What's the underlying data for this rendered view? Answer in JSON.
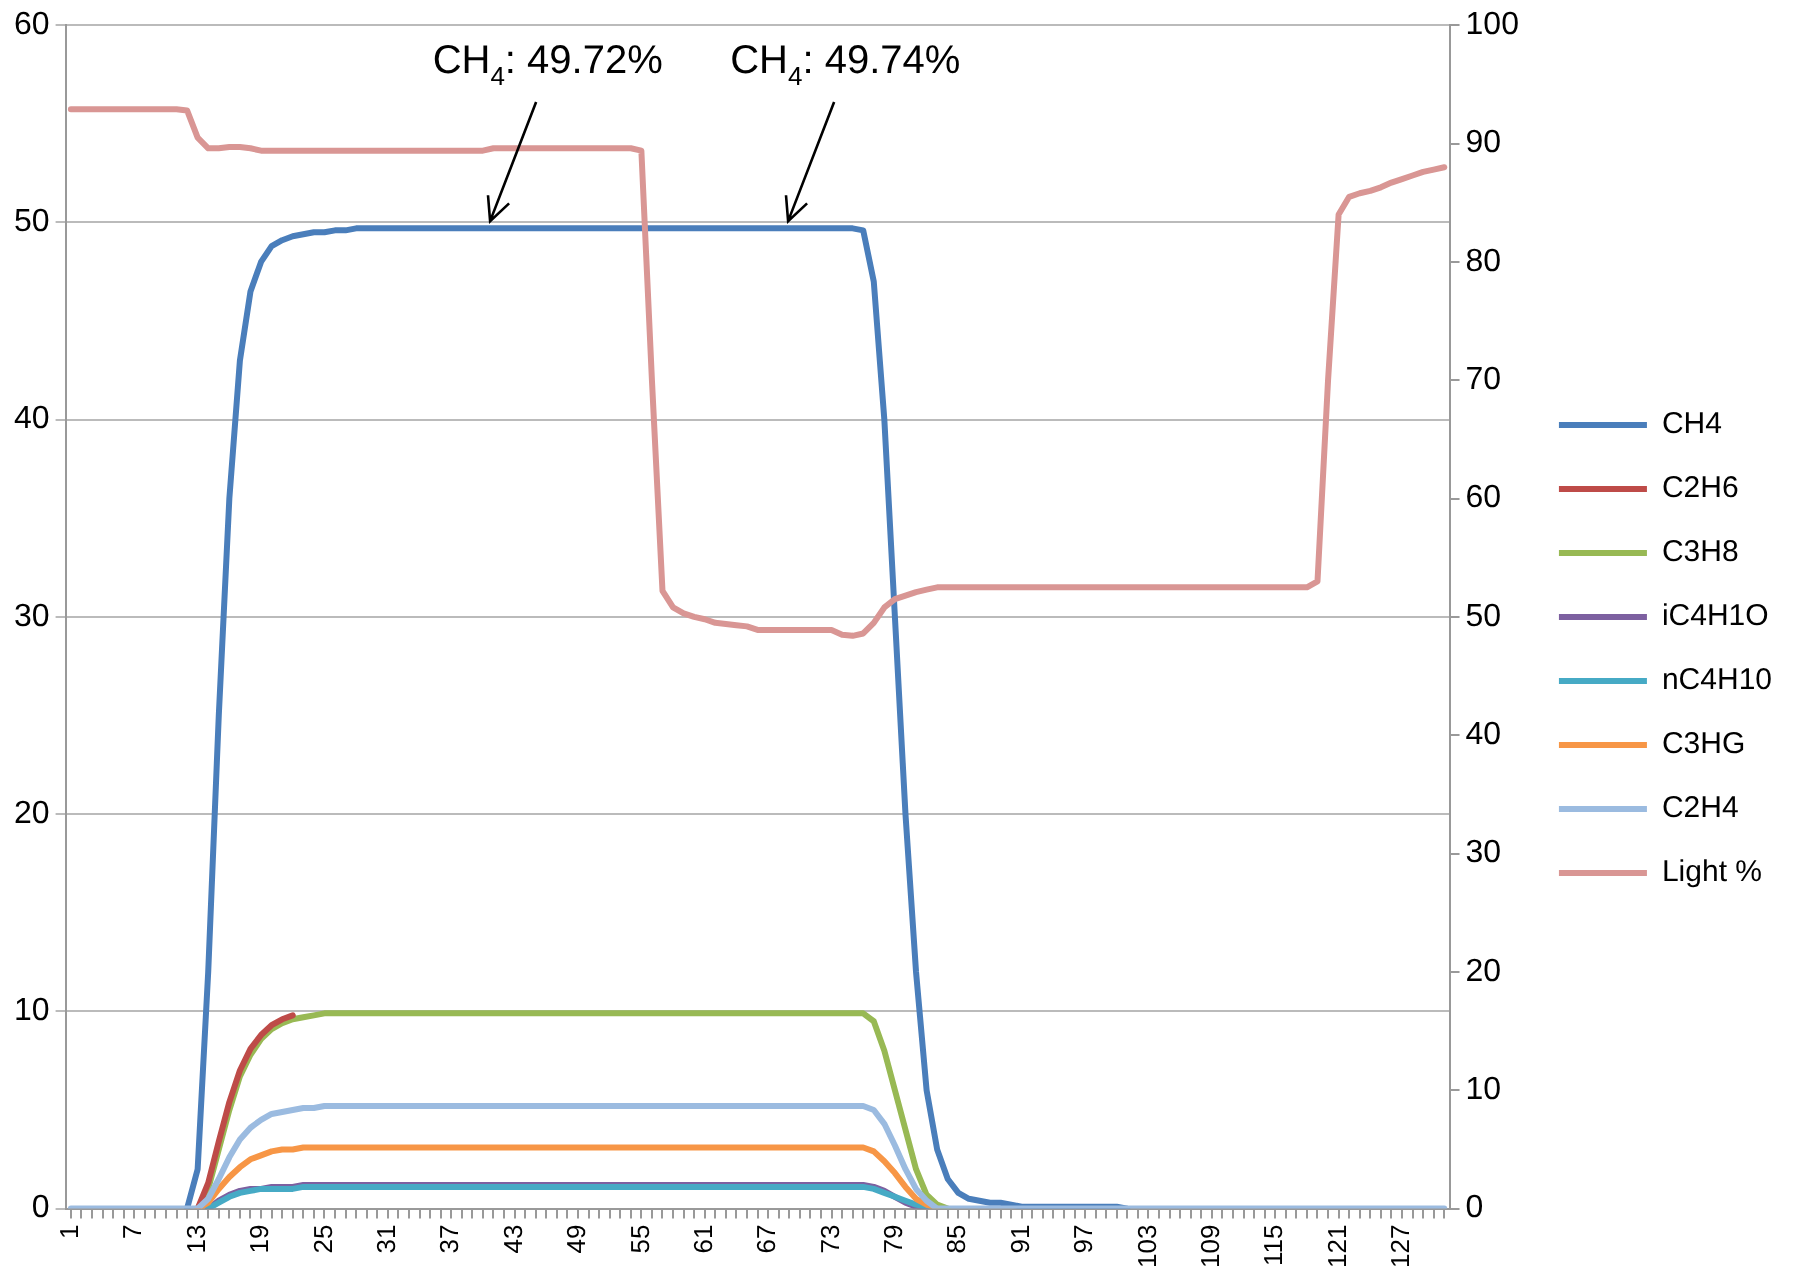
{
  "chart_data": {
    "type": "line",
    "categories": [
      "1",
      null,
      null,
      null,
      null,
      null,
      "7",
      null,
      null,
      null,
      null,
      null,
      "13",
      null,
      null,
      null,
      null,
      null,
      "19",
      null,
      null,
      null,
      null,
      null,
      "25",
      null,
      null,
      null,
      null,
      null,
      "31",
      null,
      null,
      null,
      null,
      null,
      "37",
      null,
      null,
      null,
      null,
      null,
      "43",
      null,
      null,
      null,
      null,
      null,
      "49",
      null,
      null,
      null,
      null,
      null,
      "55",
      null,
      null,
      null,
      null,
      null,
      "61",
      null,
      null,
      null,
      null,
      null,
      "67",
      null,
      null,
      null,
      null,
      null,
      "73",
      null,
      null,
      null,
      null,
      null,
      "79",
      null,
      null,
      null,
      null,
      null,
      "85",
      null,
      null,
      null,
      null,
      null,
      "91",
      null,
      null,
      null,
      null,
      null,
      "97",
      null,
      null,
      null,
      null,
      null,
      "103",
      null,
      null,
      null,
      null,
      null,
      "109",
      null,
      null,
      null,
      null,
      null,
      "115",
      null,
      null,
      null,
      null,
      null,
      "121",
      null,
      null,
      null,
      null,
      null,
      "127",
      null,
      null,
      null,
      null
    ],
    "series": [
      {
        "name": "CH4",
        "color": "#4a7ebb",
        "values": [
          null,
          null,
          null,
          null,
          null,
          null,
          null,
          null,
          null,
          null,
          null,
          0,
          2,
          12,
          25,
          36,
          43,
          46.5,
          48,
          48.8,
          49.1,
          49.3,
          49.4,
          49.5,
          49.5,
          49.6,
          49.6,
          49.7,
          49.7,
          49.7,
          49.7,
          49.7,
          49.7,
          49.7,
          49.7,
          49.7,
          49.7,
          49.7,
          49.7,
          49.7,
          49.7,
          49.7,
          49.7,
          49.7,
          49.7,
          49.7,
          49.7,
          49.7,
          49.7,
          49.7,
          49.7,
          49.7,
          49.7,
          49.7,
          49.7,
          49.7,
          49.7,
          49.7,
          49.7,
          49.7,
          49.7,
          49.7,
          49.7,
          49.7,
          49.7,
          49.7,
          49.7,
          49.7,
          49.7,
          49.7,
          49.7,
          49.7,
          49.7,
          49.7,
          49.7,
          49.6,
          47,
          40,
          30,
          20,
          12,
          6,
          3,
          1.5,
          0.8,
          0.5,
          0.4,
          0.3,
          0.3,
          0.2,
          0.1,
          0.1,
          0.1,
          0.1,
          0.1,
          0.1,
          0.1,
          0.1,
          0.1,
          0.1,
          0,
          null,
          null,
          null,
          null,
          null,
          null,
          null,
          null,
          null,
          null,
          null,
          null,
          null,
          null,
          null,
          null,
          null,
          null,
          null,
          null,
          null,
          null,
          null,
          null,
          null,
          null,
          null,
          null,
          null,
          null
        ]
      },
      {
        "name": "C2H6",
        "color": "#be4b48",
        "values": [
          null,
          null,
          null,
          null,
          null,
          null,
          null,
          null,
          null,
          null,
          null,
          null,
          0,
          1.3,
          3.4,
          5.4,
          7,
          8.1,
          8.8,
          9.3,
          9.6,
          9.8,
          null,
          null,
          null,
          null,
          null,
          null,
          null,
          null,
          null,
          null,
          null,
          null,
          null,
          null,
          null,
          null,
          null,
          null,
          null,
          null,
          null,
          null,
          null,
          null,
          null,
          null,
          null,
          null,
          null,
          null,
          null,
          null,
          null,
          null,
          null,
          null,
          null,
          null,
          null,
          null,
          null,
          null,
          null,
          null,
          null,
          null,
          null,
          null,
          null,
          null,
          null,
          null,
          null,
          null,
          null,
          null,
          null,
          null,
          null,
          null,
          null,
          null,
          null,
          null,
          null,
          null,
          null,
          null,
          null,
          null,
          null,
          null,
          null,
          null,
          null,
          null,
          null,
          null,
          null,
          null,
          null,
          null,
          null,
          null,
          null,
          null,
          null,
          null,
          null,
          null,
          null,
          null,
          null,
          null,
          null,
          null,
          null,
          null,
          null,
          null,
          null,
          null,
          null,
          null,
          null,
          null,
          null,
          null,
          null
        ]
      },
      {
        "name": "C3H8",
        "color": "#98b954",
        "values": [
          null,
          null,
          null,
          null,
          null,
          null,
          null,
          null,
          null,
          null,
          null,
          null,
          0,
          1,
          3,
          5,
          6.7,
          7.8,
          8.6,
          9.1,
          9.4,
          9.6,
          9.7,
          9.8,
          9.9,
          9.9,
          9.9,
          9.9,
          9.9,
          9.9,
          9.9,
          9.9,
          9.9,
          9.9,
          9.9,
          9.9,
          9.9,
          9.9,
          9.9,
          9.9,
          9.9,
          9.9,
          9.9,
          9.9,
          9.9,
          9.9,
          9.9,
          9.9,
          9.9,
          9.9,
          9.9,
          9.9,
          9.9,
          9.9,
          9.9,
          9.9,
          9.9,
          9.9,
          9.9,
          9.9,
          9.9,
          9.9,
          9.9,
          9.9,
          9.9,
          9.9,
          9.9,
          9.9,
          9.9,
          9.9,
          9.9,
          9.9,
          9.9,
          9.9,
          9.9,
          9.9,
          9.5,
          8,
          6,
          4,
          2,
          0.7,
          0.2,
          0,
          null,
          null,
          null,
          null,
          null,
          null,
          null,
          null,
          null,
          null,
          null,
          null,
          null,
          null,
          null,
          null,
          null,
          null,
          null,
          null,
          null,
          null,
          null,
          null,
          null,
          null,
          null,
          null,
          null,
          null,
          null,
          null,
          null,
          null,
          null,
          null,
          null,
          null,
          null,
          null,
          null,
          null,
          null,
          null,
          null,
          null,
          null
        ]
      },
      {
        "name": "iC4H1O",
        "color": "#7d60a0",
        "values": [
          null,
          null,
          null,
          null,
          null,
          null,
          null,
          null,
          null,
          null,
          null,
          null,
          null,
          0,
          0.4,
          0.7,
          0.9,
          1,
          1,
          1.1,
          1.1,
          1.1,
          1.2,
          1.2,
          1.2,
          1.2,
          1.2,
          1.2,
          1.2,
          1.2,
          1.2,
          1.2,
          1.2,
          1.2,
          1.2,
          1.2,
          1.2,
          1.2,
          1.2,
          1.2,
          1.2,
          1.2,
          1.2,
          1.2,
          1.2,
          1.2,
          1.2,
          1.2,
          1.2,
          1.2,
          1.2,
          1.2,
          1.2,
          1.2,
          1.2,
          1.2,
          1.2,
          1.2,
          1.2,
          1.2,
          1.2,
          1.2,
          1.2,
          1.2,
          1.2,
          1.2,
          1.2,
          1.2,
          1.2,
          1.2,
          1.2,
          1.2,
          1.2,
          1.2,
          1.2,
          1.2,
          1.1,
          0.9,
          0.6,
          0.3,
          0.1,
          0,
          null,
          null,
          null,
          null,
          null,
          null,
          null,
          null,
          null,
          null,
          null,
          null,
          null,
          null,
          null,
          null,
          null,
          null,
          null,
          null,
          null,
          null,
          null,
          null,
          null,
          null,
          null,
          null,
          null,
          null,
          null,
          null,
          null,
          null,
          null,
          null,
          null,
          null,
          null,
          null,
          null,
          null,
          null,
          null,
          null,
          null,
          null,
          null,
          null
        ]
      },
      {
        "name": "nC4H10",
        "color": "#46aac5",
        "values": [
          null,
          null,
          null,
          null,
          null,
          null,
          null,
          null,
          null,
          null,
          null,
          null,
          null,
          0,
          0.3,
          0.6,
          0.8,
          0.9,
          1,
          1,
          1,
          1,
          1.1,
          1.1,
          1.1,
          1.1,
          1.1,
          1.1,
          1.1,
          1.1,
          1.1,
          1.1,
          1.1,
          1.1,
          1.1,
          1.1,
          1.1,
          1.1,
          1.1,
          1.1,
          1.1,
          1.1,
          1.1,
          1.1,
          1.1,
          1.1,
          1.1,
          1.1,
          1.1,
          1.1,
          1.1,
          1.1,
          1.1,
          1.1,
          1.1,
          1.1,
          1.1,
          1.1,
          1.1,
          1.1,
          1.1,
          1.1,
          1.1,
          1.1,
          1.1,
          1.1,
          1.1,
          1.1,
          1.1,
          1.1,
          1.1,
          1.1,
          1.1,
          1.1,
          1.1,
          1.1,
          1,
          0.8,
          0.6,
          0.4,
          0.2,
          0.1,
          0,
          null,
          null,
          null,
          null,
          null,
          null,
          null,
          null,
          null,
          null,
          null,
          null,
          null,
          null,
          null,
          null,
          null,
          null,
          null,
          null,
          null,
          null,
          null,
          null,
          null,
          null,
          null,
          null,
          null,
          null,
          null,
          null,
          null,
          null,
          null,
          null,
          null,
          null,
          null,
          null,
          null,
          null,
          null,
          null,
          null,
          null,
          null,
          null
        ]
      },
      {
        "name": "C3HG",
        "color": "#f79646",
        "values": [
          null,
          null,
          null,
          null,
          null,
          null,
          null,
          null,
          null,
          null,
          null,
          null,
          0,
          0.3,
          1,
          1.6,
          2.1,
          2.5,
          2.7,
          2.9,
          3,
          3,
          3.1,
          3.1,
          3.1,
          3.1,
          3.1,
          3.1,
          3.1,
          3.1,
          3.1,
          3.1,
          3.1,
          3.1,
          3.1,
          3.1,
          3.1,
          3.1,
          3.1,
          3.1,
          3.1,
          3.1,
          3.1,
          3.1,
          3.1,
          3.1,
          3.1,
          3.1,
          3.1,
          3.1,
          3.1,
          3.1,
          3.1,
          3.1,
          3.1,
          3.1,
          3.1,
          3.1,
          3.1,
          3.1,
          3.1,
          3.1,
          3.1,
          3.1,
          3.1,
          3.1,
          3.1,
          3.1,
          3.1,
          3.1,
          3.1,
          3.1,
          3.1,
          3.1,
          3.1,
          3.1,
          2.9,
          2.4,
          1.8,
          1.1,
          0.5,
          0.2,
          0,
          null,
          null,
          null,
          null,
          null,
          null,
          null,
          null,
          null,
          null,
          null,
          null,
          null,
          null,
          null,
          null,
          null,
          null,
          null,
          null,
          null,
          null,
          null,
          null,
          null,
          null,
          null,
          null,
          null,
          null,
          null,
          null,
          null,
          null,
          null,
          null,
          null,
          null,
          null,
          null,
          null,
          null,
          null,
          null,
          null,
          null,
          null,
          null
        ]
      },
      {
        "name": "C2H4",
        "color": "#9bbbe0",
        "values": [
          0,
          0,
          0,
          0,
          0,
          0,
          0,
          0,
          0,
          0,
          0,
          0,
          0,
          0.5,
          1.5,
          2.6,
          3.5,
          4.1,
          4.5,
          4.8,
          4.9,
          5,
          5.1,
          5.1,
          5.2,
          5.2,
          5.2,
          5.2,
          5.2,
          5.2,
          5.2,
          5.2,
          5.2,
          5.2,
          5.2,
          5.2,
          5.2,
          5.2,
          5.2,
          5.2,
          5.2,
          5.2,
          5.2,
          5.2,
          5.2,
          5.2,
          5.2,
          5.2,
          5.2,
          5.2,
          5.2,
          5.2,
          5.2,
          5.2,
          5.2,
          5.2,
          5.2,
          5.2,
          5.2,
          5.2,
          5.2,
          5.2,
          5.2,
          5.2,
          5.2,
          5.2,
          5.2,
          5.2,
          5.2,
          5.2,
          5.2,
          5.2,
          5.2,
          5.2,
          5.2,
          5.2,
          5,
          4.3,
          3.2,
          2,
          1,
          0.4,
          0,
          0,
          0,
          0,
          0,
          0,
          0,
          0,
          0,
          0,
          0,
          0,
          0,
          0,
          0,
          0,
          0,
          0,
          0,
          0,
          0,
          0,
          0,
          0,
          0,
          0,
          0,
          0,
          0,
          0,
          0,
          0,
          0,
          0,
          0,
          0,
          0,
          0,
          0,
          0,
          0,
          0,
          0,
          0,
          0,
          0,
          0,
          0,
          0
        ]
      },
      {
        "name": "Light %",
        "color": "#d99694",
        "axis": "y2",
        "values": [
          92.9,
          92.9,
          92.9,
          92.9,
          92.9,
          92.9,
          92.9,
          92.9,
          92.9,
          92.9,
          92.9,
          92.8,
          90.5,
          89.6,
          89.6,
          89.7,
          89.7,
          89.6,
          89.4,
          89.4,
          89.4,
          89.4,
          89.4,
          89.4,
          89.4,
          89.4,
          89.4,
          89.4,
          89.4,
          89.4,
          89.4,
          89.4,
          89.4,
          89.4,
          89.4,
          89.4,
          89.4,
          89.4,
          89.4,
          89.4,
          89.6,
          89.6,
          89.6,
          89.6,
          89.6,
          89.6,
          89.6,
          89.6,
          89.6,
          89.6,
          89.6,
          89.6,
          89.6,
          89.6,
          89.4,
          70,
          52.2,
          50.8,
          50.3,
          50,
          49.8,
          49.5,
          49.4,
          49.3,
          49.2,
          48.9,
          48.9,
          48.9,
          48.9,
          48.9,
          48.9,
          48.9,
          48.9,
          48.5,
          48.4,
          48.6,
          49.5,
          50.8,
          51.5,
          51.8,
          52.1,
          52.3,
          52.5,
          52.5,
          52.5,
          52.5,
          52.5,
          52.5,
          52.5,
          52.5,
          52.5,
          52.5,
          52.5,
          52.5,
          52.5,
          52.5,
          52.5,
          52.5,
          52.5,
          52.5,
          52.5,
          52.5,
          52.5,
          52.5,
          52.5,
          52.5,
          52.5,
          52.5,
          52.5,
          52.5,
          52.5,
          52.5,
          52.5,
          52.5,
          52.5,
          52.5,
          52.5,
          52.5,
          53,
          70,
          84,
          85.5,
          85.8,
          86,
          86.3,
          86.7,
          87,
          87.3,
          87.6,
          87.8,
          88
        ]
      }
    ],
    "ylim": [
      0,
      60
    ],
    "yticks": [
      0,
      10,
      20,
      30,
      40,
      50,
      60
    ],
    "y2lim": [
      0,
      100
    ],
    "y2ticks": [
      0,
      10,
      20,
      30,
      40,
      50,
      60,
      70,
      80,
      90,
      100
    ],
    "grid": "y",
    "legend": "right",
    "annotations": [
      "CH$_{4}$: 49.72%",
      "CH$_{4}$: 49.74%"
    ]
  }
}
